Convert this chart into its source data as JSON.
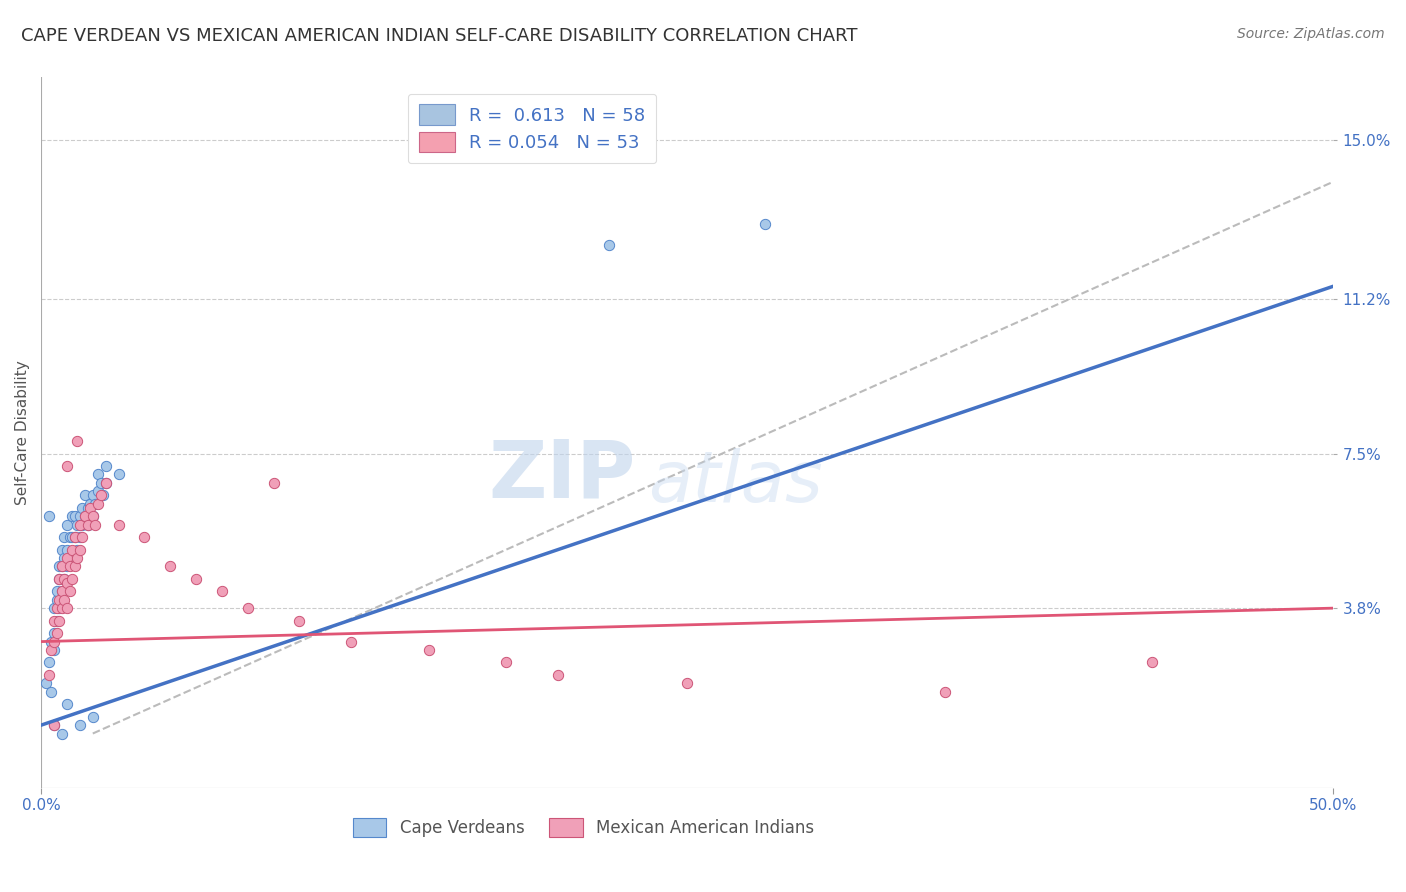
{
  "title": "CAPE VERDEAN VS MEXICAN AMERICAN INDIAN SELF-CARE DISABILITY CORRELATION CHART",
  "source": "Source: ZipAtlas.com",
  "xlabel": "",
  "ylabel": "Self-Care Disability",
  "xlim": [
    0.0,
    0.5
  ],
  "ylim": [
    -0.005,
    0.165
  ],
  "yticks": [
    0.038,
    0.075,
    0.112,
    0.15
  ],
  "ytick_labels": [
    "3.8%",
    "7.5%",
    "11.2%",
    "15.0%"
  ],
  "xticks": [
    0.0,
    0.5
  ],
  "xtick_labels": [
    "0.0%",
    "50.0%"
  ],
  "legend_entries": [
    {
      "label": "R =  0.613   N = 58",
      "color": "#a8c4e0"
    },
    {
      "label": "R = 0.054   N = 53",
      "color": "#f4a0b0"
    }
  ],
  "blue_scatter": {
    "color": "#a8c8e8",
    "edge_color": "#5588cc",
    "points": [
      [
        0.002,
        0.02
      ],
      [
        0.003,
        0.025
      ],
      [
        0.004,
        0.018
      ],
      [
        0.004,
        0.03
      ],
      [
        0.005,
        0.028
      ],
      [
        0.005,
        0.032
      ],
      [
        0.005,
        0.038
      ],
      [
        0.006,
        0.035
      ],
      [
        0.006,
        0.04
      ],
      [
        0.006,
        0.042
      ],
      [
        0.007,
        0.038
      ],
      [
        0.007,
        0.045
      ],
      [
        0.007,
        0.048
      ],
      [
        0.008,
        0.042
      ],
      [
        0.008,
        0.048
      ],
      [
        0.008,
        0.052
      ],
      [
        0.009,
        0.045
      ],
      [
        0.009,
        0.05
      ],
      [
        0.009,
        0.055
      ],
      [
        0.01,
        0.048
      ],
      [
        0.01,
        0.052
      ],
      [
        0.01,
        0.058
      ],
      [
        0.011,
        0.05
      ],
      [
        0.011,
        0.055
      ],
      [
        0.012,
        0.05
      ],
      [
        0.012,
        0.055
      ],
      [
        0.012,
        0.06
      ],
      [
        0.013,
        0.055
      ],
      [
        0.013,
        0.06
      ],
      [
        0.014,
        0.052
      ],
      [
        0.014,
        0.058
      ],
      [
        0.015,
        0.055
      ],
      [
        0.015,
        0.06
      ],
      [
        0.016,
        0.058
      ],
      [
        0.016,
        0.062
      ],
      [
        0.017,
        0.06
      ],
      [
        0.017,
        0.065
      ],
      [
        0.018,
        0.062
      ],
      [
        0.018,
        0.058
      ],
      [
        0.019,
        0.063
      ],
      [
        0.02,
        0.06
      ],
      [
        0.02,
        0.065
      ],
      [
        0.021,
        0.063
      ],
      [
        0.022,
        0.066
      ],
      [
        0.022,
        0.07
      ],
      [
        0.023,
        0.068
      ],
      [
        0.024,
        0.065
      ],
      [
        0.025,
        0.068
      ],
      [
        0.025,
        0.072
      ],
      [
        0.003,
        0.06
      ],
      [
        0.03,
        0.07
      ],
      [
        0.22,
        0.125
      ],
      [
        0.28,
        0.13
      ],
      [
        0.015,
        0.01
      ],
      [
        0.01,
        0.015
      ],
      [
        0.02,
        0.012
      ],
      [
        0.005,
        0.01
      ],
      [
        0.008,
        0.008
      ]
    ]
  },
  "pink_scatter": {
    "color": "#f0a0b8",
    "edge_color": "#cc5577",
    "points": [
      [
        0.003,
        0.022
      ],
      [
        0.004,
        0.028
      ],
      [
        0.005,
        0.03
      ],
      [
        0.005,
        0.035
      ],
      [
        0.006,
        0.032
      ],
      [
        0.006,
        0.038
      ],
      [
        0.007,
        0.035
      ],
      [
        0.007,
        0.04
      ],
      [
        0.007,
        0.045
      ],
      [
        0.008,
        0.038
      ],
      [
        0.008,
        0.042
      ],
      [
        0.008,
        0.048
      ],
      [
        0.009,
        0.04
      ],
      [
        0.009,
        0.045
      ],
      [
        0.01,
        0.038
      ],
      [
        0.01,
        0.044
      ],
      [
        0.01,
        0.05
      ],
      [
        0.011,
        0.042
      ],
      [
        0.011,
        0.048
      ],
      [
        0.012,
        0.045
      ],
      [
        0.012,
        0.052
      ],
      [
        0.013,
        0.048
      ],
      [
        0.013,
        0.055
      ],
      [
        0.014,
        0.05
      ],
      [
        0.015,
        0.052
      ],
      [
        0.015,
        0.058
      ],
      [
        0.016,
        0.055
      ],
      [
        0.017,
        0.06
      ],
      [
        0.018,
        0.058
      ],
      [
        0.019,
        0.062
      ],
      [
        0.02,
        0.06
      ],
      [
        0.021,
        0.058
      ],
      [
        0.022,
        0.063
      ],
      [
        0.023,
        0.065
      ],
      [
        0.025,
        0.068
      ],
      [
        0.01,
        0.072
      ],
      [
        0.014,
        0.078
      ],
      [
        0.03,
        0.058
      ],
      [
        0.04,
        0.055
      ],
      [
        0.05,
        0.048
      ],
      [
        0.06,
        0.045
      ],
      [
        0.07,
        0.042
      ],
      [
        0.08,
        0.038
      ],
      [
        0.1,
        0.035
      ],
      [
        0.12,
        0.03
      ],
      [
        0.15,
        0.028
      ],
      [
        0.18,
        0.025
      ],
      [
        0.2,
        0.022
      ],
      [
        0.25,
        0.02
      ],
      [
        0.35,
        0.018
      ],
      [
        0.43,
        0.025
      ],
      [
        0.09,
        0.068
      ],
      [
        0.005,
        0.01
      ]
    ]
  },
  "blue_trendline": {
    "x": [
      0.0,
      0.5
    ],
    "y": [
      0.01,
      0.115
    ],
    "color": "#4472c4",
    "linewidth": 2.5
  },
  "pink_trendline": {
    "x": [
      0.0,
      0.5
    ],
    "y": [
      0.03,
      0.038
    ],
    "color": "#e05575",
    "linewidth": 2.0
  },
  "diagonal_line": {
    "x": [
      0.02,
      0.5
    ],
    "y": [
      0.008,
      0.14
    ],
    "color": "#bbbbbb",
    "linestyle": "--",
    "linewidth": 1.5
  },
  "watermark_zip": "ZIP",
  "watermark_atlas": "atlas",
  "background_color": "#ffffff",
  "grid_color": "#cccccc",
  "title_fontsize": 13,
  "axis_label_fontsize": 11,
  "tick_fontsize": 11,
  "legend_fontsize": 13,
  "source_fontsize": 10
}
